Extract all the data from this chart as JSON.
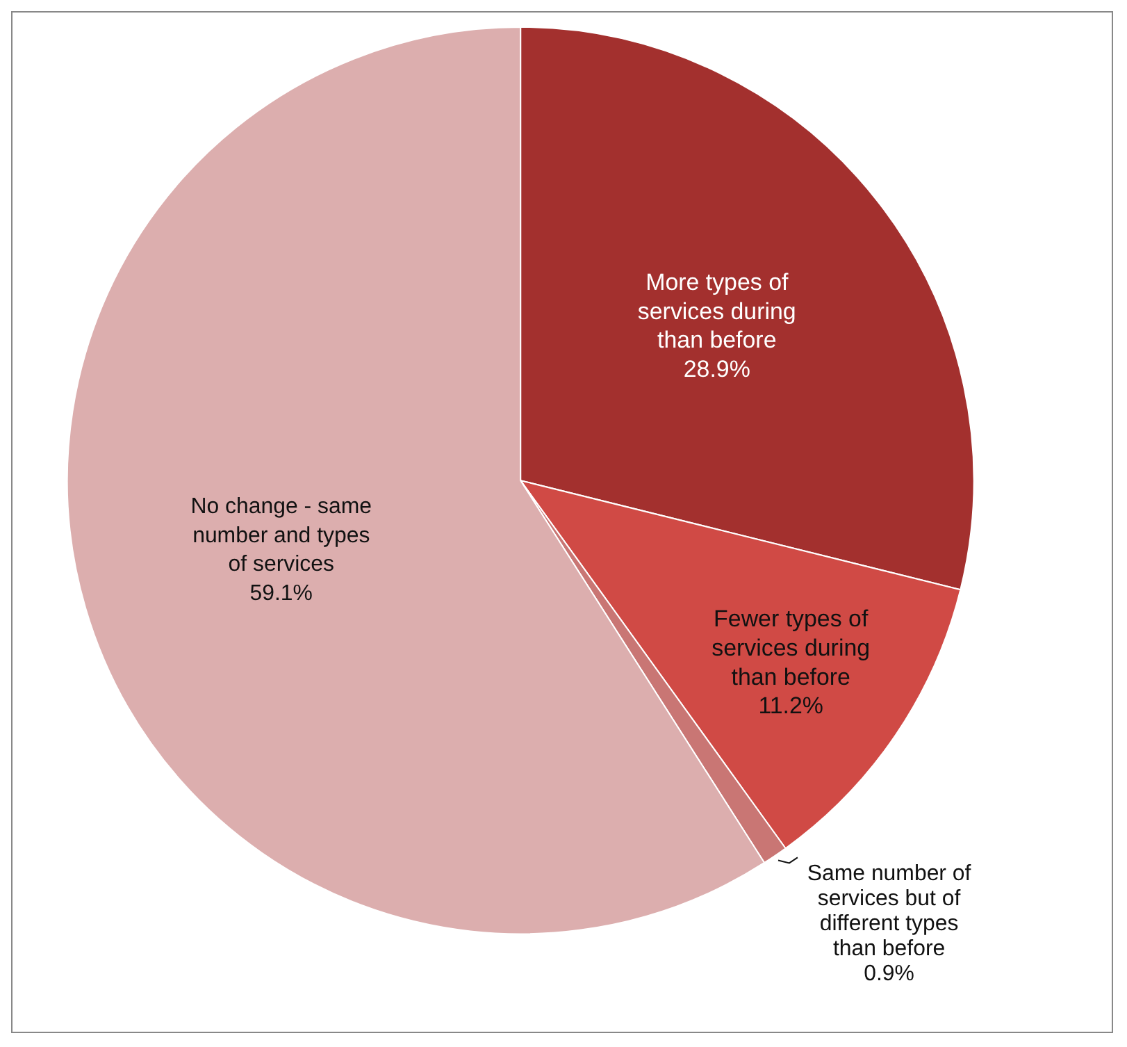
{
  "chart_data": {
    "type": "pie",
    "categories": [
      "More types of services during than before",
      "Fewer types of services during than before",
      "Same number of services but of different types than before",
      "No change - same number and types of services"
    ],
    "values": [
      28.9,
      11.2,
      0.9,
      59.1
    ],
    "colors": [
      "#a3302e",
      "#d04a45",
      "#c97674",
      "#dcaeae"
    ],
    "value_labels": [
      "28.9%",
      "11.2%",
      "0.9%",
      "59.1%"
    ],
    "legend": false
  }
}
